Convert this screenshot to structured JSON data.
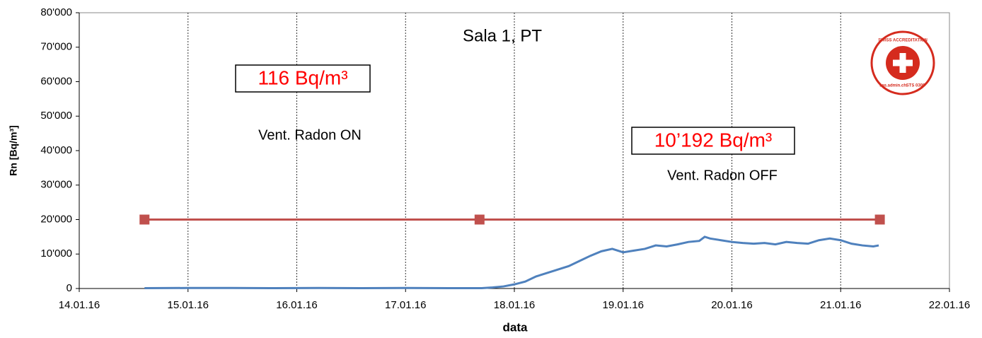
{
  "chart_data": {
    "type": "line",
    "title": "Sala 1, PT",
    "x_label": "data",
    "y_label": "Rn [Bq/m³]",
    "annotations": [
      "116 Bq/m³",
      "Vent. Radon ON",
      "10’192 Bq/m³",
      "Vent. Radon OFF"
    ],
    "logo": [
      "SWISS ACCREDITATION",
      "sas.admin.ch",
      "STS 0305"
    ],
    "xlim": [
      14,
      22
    ],
    "xticks": [
      {
        "value": 14,
        "label": "14.01.16"
      },
      {
        "value": 15,
        "label": "15.01.16"
      },
      {
        "value": 16,
        "label": "16.01.16"
      },
      {
        "value": 17,
        "label": "17.01.16"
      },
      {
        "value": 18,
        "label": "18.01.16"
      },
      {
        "value": 19,
        "label": "19.01.16"
      },
      {
        "value": 20,
        "label": "20.01.16"
      },
      {
        "value": 21,
        "label": "21.01.16"
      },
      {
        "value": 22,
        "label": "22.01.16"
      }
    ],
    "ylim": [
      0,
      80000
    ],
    "yticks": [
      0,
      {
        "value": 10000,
        "label": "10'000"
      },
      {
        "value": 20000,
        "label": "20'000"
      },
      {
        "value": 30000,
        "label": "30'000"
      },
      {
        "value": 40000,
        "label": "40'000"
      },
      {
        "value": 50000,
        "label": "50'000"
      },
      {
        "value": 60000,
        "label": "60'000"
      },
      {
        "value": 70000,
        "label": "70'000"
      },
      {
        "value": 80000,
        "label": "80'000"
      }
    ],
    "grid": true,
    "series": [
      {
        "color": "#4f81bd",
        "marker": false,
        "x": [
          14.6,
          15.0,
          15.4,
          15.8,
          16.2,
          16.6,
          17.0,
          17.4,
          17.7,
          17.8,
          17.9,
          18.0,
          18.1,
          18.2,
          18.3,
          18.4,
          18.5,
          18.6,
          18.7,
          18.8,
          18.9,
          19.0,
          19.1,
          19.2,
          19.3,
          19.4,
          19.5,
          19.6,
          19.7,
          19.75,
          19.8,
          19.9,
          20.0,
          20.1,
          20.2,
          20.3,
          20.4,
          20.5,
          20.6,
          20.7,
          20.8,
          20.9,
          21.0,
          21.1,
          21.2,
          21.3,
          21.35
        ],
        "values": [
          100,
          150,
          150,
          100,
          150,
          100,
          150,
          100,
          100,
          300,
          600,
          1200,
          2000,
          3500,
          4500,
          5500,
          6500,
          8000,
          9500,
          10800,
          11500,
          10500,
          11000,
          11500,
          12500,
          12200,
          12800,
          13500,
          13800,
          15000,
          14500,
          14000,
          13500,
          13200,
          13000,
          13200,
          12800,
          13500,
          13200,
          13000,
          14000,
          14500,
          14000,
          13000,
          12500,
          12200,
          12500
        ]
      },
      {
        "color": "#c0504d",
        "marker": true,
        "x": [
          14.6,
          17.68,
          21.36
        ],
        "values": [
          20000,
          20000,
          20000
        ]
      }
    ]
  }
}
